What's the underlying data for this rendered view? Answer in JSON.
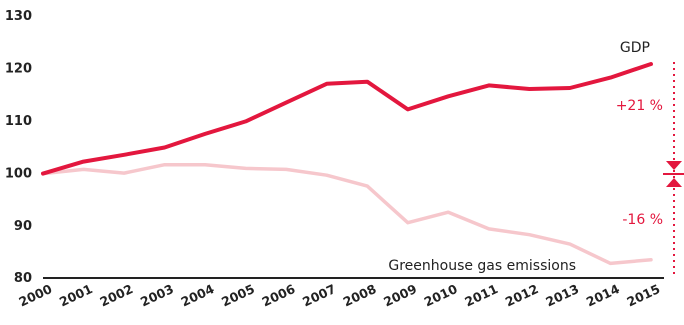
{
  "chart_data": {
    "type": "line",
    "title": "",
    "xlabel": "",
    "ylabel": "",
    "x": [
      "2000",
      "2001",
      "2002",
      "2003",
      "2004",
      "2005",
      "2006",
      "2007",
      "2008",
      "2009",
      "2010",
      "2011",
      "2012",
      "2013",
      "2014",
      "2015"
    ],
    "yticks": [
      "80",
      "90",
      "100",
      "110",
      "120",
      "130"
    ],
    "ylim": [
      80,
      130
    ],
    "grid": false,
    "series": [
      {
        "name": "GDP",
        "color": "#e3173e",
        "values": [
          100,
          102.3,
          103.6,
          105,
          107.6,
          110,
          113.6,
          117.2,
          117.6,
          112.3,
          114.8,
          116.9,
          116.2,
          116.4,
          118.4,
          121
        ]
      },
      {
        "name": "Greenhouse gas emissions",
        "color": "#f6c7cc",
        "values": [
          100,
          100.8,
          100.1,
          101.7,
          101.7,
          101,
          100.8,
          99.7,
          97.6,
          90.6,
          92.6,
          89.4,
          88.3,
          86.5,
          82.8,
          83.5
        ]
      }
    ],
    "annotations": {
      "gdp_change": "+21 %",
      "emissions_change": "-16 %"
    },
    "marker_color": "#e3173e"
  }
}
